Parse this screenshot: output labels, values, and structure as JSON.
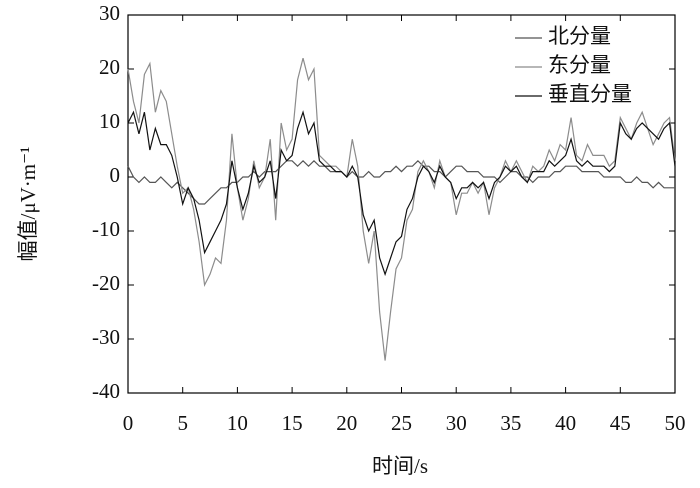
{
  "chart_data": {
    "type": "line",
    "xlabel": "时间/s",
    "ylabel": "幅值/μV·m⁻¹",
    "x": [
      0,
      0.5,
      1,
      1.5,
      2,
      2.5,
      3,
      3.5,
      4,
      4.5,
      5,
      5.5,
      6,
      6.5,
      7,
      7.5,
      8,
      8.5,
      9,
      9.5,
      10,
      10.5,
      11,
      11.5,
      12,
      12.5,
      13,
      13.5,
      14,
      14.5,
      15,
      15.5,
      16,
      16.5,
      17,
      17.5,
      18,
      18.5,
      19,
      19.5,
      20,
      20.5,
      21,
      21.5,
      22,
      22.5,
      23,
      23.5,
      24,
      24.5,
      25,
      25.5,
      26,
      26.5,
      27,
      27.5,
      28,
      28.5,
      29,
      29.5,
      30,
      30.5,
      31,
      31.5,
      32,
      32.5,
      33,
      33.5,
      34,
      34.5,
      35,
      35.5,
      36,
      36.5,
      37,
      37.5,
      38,
      38.5,
      39,
      39.5,
      40,
      40.5,
      41,
      41.5,
      42,
      42.5,
      43,
      43.5,
      44,
      44.5,
      45,
      45.5,
      46,
      46.5,
      47,
      47.5,
      48,
      48.5,
      49,
      49.5,
      50
    ],
    "series": [
      {
        "name": "北分量",
        "color": "#555555",
        "values": [
          2,
          0,
          -1,
          0,
          -1,
          -1,
          0,
          -1,
          -2,
          -1,
          -2,
          -3,
          -4,
          -5,
          -5,
          -4,
          -3,
          -2,
          -2,
          -1,
          -1,
          0,
          0,
          1,
          0,
          1,
          1,
          1,
          2,
          3,
          3,
          2,
          3,
          2,
          3,
          2,
          2,
          1,
          1,
          1,
          0,
          1,
          0,
          0,
          1,
          0,
          0,
          1,
          1,
          2,
          1,
          2,
          2,
          3,
          2,
          2,
          1,
          1,
          0,
          1,
          2,
          2,
          1,
          1,
          1,
          0,
          0,
          0,
          -1,
          0,
          1,
          1,
          0,
          0,
          -1,
          0,
          0,
          0,
          1,
          1,
          2,
          2,
          2,
          1,
          1,
          1,
          1,
          0,
          0,
          0,
          0,
          -1,
          -1,
          0,
          -1,
          -1,
          -2,
          -1,
          -2,
          -2,
          -2
        ]
      },
      {
        "name": "东分量",
        "color": "#8c8c8c",
        "values": [
          20,
          14,
          10,
          19,
          21,
          12,
          16,
          14,
          8,
          2,
          -3,
          -2,
          -6,
          -12,
          -20,
          -18,
          -15,
          -16,
          -8,
          8,
          -2,
          -8,
          -4,
          3,
          -2,
          0,
          7,
          -8,
          10,
          5,
          7,
          18,
          22,
          18,
          20,
          4,
          3,
          2,
          2,
          1,
          0,
          7,
          2,
          -10,
          -16,
          -10,
          -25,
          -34,
          -25,
          -17,
          -15,
          -8,
          -6,
          1,
          3,
          1,
          -2,
          3,
          0,
          -1,
          -7,
          -3,
          -3,
          -1,
          -3,
          -1,
          -7,
          -2,
          0,
          3,
          1,
          3,
          1,
          -1,
          2,
          1,
          2,
          5,
          3,
          6,
          5,
          11,
          4,
          3,
          6,
          4,
          4,
          4,
          2,
          3,
          11,
          9,
          7,
          10,
          12,
          9,
          6,
          8,
          10,
          11,
          3
        ]
      },
      {
        "name": "垂直分量",
        "color": "#111111",
        "values": [
          10,
          12,
          8,
          12,
          5,
          9,
          6,
          6,
          4,
          0,
          -5,
          -2,
          -4,
          -8,
          -14,
          -12,
          -10,
          -8,
          -5,
          3,
          -2,
          -6,
          -3,
          2,
          -1,
          0,
          3,
          -4,
          5,
          3,
          4,
          9,
          12,
          8,
          10,
          3,
          2,
          2,
          1,
          1,
          0,
          2,
          0,
          -7,
          -10,
          -8,
          -15,
          -18,
          -15,
          -12,
          -11,
          -6,
          -4,
          0,
          2,
          1,
          -1,
          2,
          0,
          -1,
          -4,
          -2,
          -2,
          -1,
          -2,
          -1,
          -4,
          -1,
          0,
          2,
          1,
          2,
          0,
          -1,
          1,
          1,
          1,
          3,
          2,
          3,
          4,
          7,
          3,
          2,
          3,
          2,
          2,
          2,
          1,
          2,
          10,
          8,
          7,
          9,
          10,
          9,
          8,
          7,
          9,
          10,
          2
        ]
      }
    ],
    "xlim": [
      0,
      50
    ],
    "xticks": [
      0,
      5,
      10,
      15,
      20,
      25,
      30,
      35,
      40,
      45,
      50
    ],
    "ylim": [
      -40,
      30
    ],
    "yticks": [
      -40,
      -30,
      -20,
      -10,
      0,
      10,
      20,
      30
    ],
    "legend": "upper right",
    "grid": false
  }
}
